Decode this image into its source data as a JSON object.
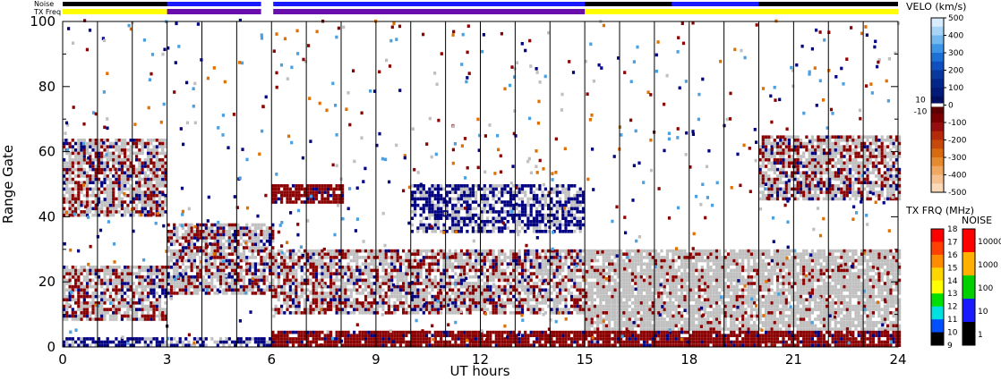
{
  "chart_data": {
    "type": "heatmap",
    "xlabel": "UT hours",
    "ylabel": "Range Gate",
    "xlim": [
      0,
      24
    ],
    "ylim": [
      0,
      100
    ],
    "x_ticks": [
      "0",
      "3",
      "6",
      "9",
      "12",
      "15",
      "18",
      "21",
      "24"
    ],
    "y_ticks": [
      "0",
      "20",
      "40",
      "60",
      "80",
      "100"
    ],
    "status_bars": [
      {
        "name": "Noise",
        "label": "Noise"
      },
      {
        "name": "TX Freq",
        "label": "TX Freq"
      }
    ],
    "velocity_colorbar": {
      "title": "VELO (km/s)",
      "positive_labels": [
        "500",
        "400",
        "300",
        "200",
        "100",
        "0"
      ],
      "negative_labels": [
        "-100",
        "-200",
        "-300",
        "-400",
        "-500"
      ],
      "small_labels": [
        "10",
        "-10"
      ]
    },
    "tx_freq_colorbar": {
      "title": "TX FRQ (MHz)",
      "labels": [
        "18",
        "17",
        "16",
        "15",
        "14",
        "13",
        "12",
        "11",
        "10",
        "9"
      ]
    },
    "noise_colorbar": {
      "title": "NOISE",
      "labels": [
        "10000",
        "1000",
        "100",
        "10",
        "1"
      ]
    },
    "regions": [
      {
        "x": [
          0,
          3
        ],
        "y": [
          40,
          64
        ],
        "kind": "mixed"
      },
      {
        "x": [
          0,
          3
        ],
        "y": [
          8,
          25
        ],
        "kind": "mixed"
      },
      {
        "x": [
          0,
          3
        ],
        "y": [
          0,
          3
        ],
        "kind": "blue"
      },
      {
        "x": [
          3,
          6
        ],
        "y": [
          16,
          38
        ],
        "kind": "mixed"
      },
      {
        "x": [
          3,
          6
        ],
        "y": [
          0,
          3
        ],
        "kind": "blue"
      },
      {
        "x": [
          6,
          10
        ],
        "y": [
          10,
          30
        ],
        "kind": "mixed"
      },
      {
        "x": [
          6,
          8
        ],
        "y": [
          44,
          50
        ],
        "kind": "red"
      },
      {
        "x": [
          6,
          15
        ],
        "y": [
          0,
          5
        ],
        "kind": "red"
      },
      {
        "x": [
          10,
          15
        ],
        "y": [
          35,
          50
        ],
        "kind": "blue"
      },
      {
        "x": [
          10,
          15
        ],
        "y": [
          10,
          30
        ],
        "kind": "mixed"
      },
      {
        "x": [
          15,
          24
        ],
        "y": [
          5,
          30
        ],
        "kind": "gray"
      },
      {
        "x": [
          15,
          24
        ],
        "y": [
          0,
          5
        ],
        "kind": "red"
      },
      {
        "x": [
          20,
          24
        ],
        "y": [
          45,
          65
        ],
        "kind": "mixed"
      }
    ]
  },
  "colors": {
    "tx_yellow": "#ffff00",
    "tx_purple": "#6a0dad",
    "noise_blue": "#1a1aff",
    "noise_black": "#000000",
    "gray": "#c0c0c0",
    "dark_red": "#8b0000",
    "navy": "#000080"
  }
}
